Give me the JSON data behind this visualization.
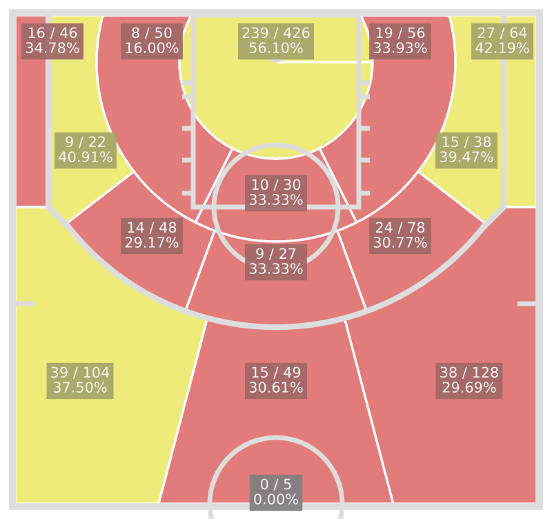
{
  "chart_data": {
    "type": "other",
    "categories": [
      null,
      null,
      null,
      null,
      null,
      null,
      null,
      null,
      null,
      null,
      null,
      null,
      null,
      null,
      null
    ],
    "values": [
      34.78,
      16.0,
      56.1,
      33.93,
      42.19,
      40.91,
      39.47,
      33.33,
      29.17,
      30.77,
      33.33,
      37.5,
      30.61,
      29.69,
      0.0
    ],
    "value_labels": [
      "16 / 46\n34.78%",
      "8 / 50\n16.00%",
      "239 / 426\n56.10%",
      "19 / 56\n33.93%",
      "27 / 64\n42.19%",
      "9 / 22\n40.91%",
      "15 / 38\n39.47%",
      "10 / 30\n33.33%",
      "14 / 48\n29.17%",
      "24 / 78\n30.77%",
      "9 / 27\n33.33%",
      "39 / 104\n37.50%",
      "15 / 49\n30.61%",
      "38 / 128\n29.69%",
      "0 / 5\n0.00%"
    ],
    "colors": [
      "#e27c7a",
      "#e27c7a",
      "#efeb7b",
      "#e27c7a",
      "#efeb7b",
      "#efeb7b",
      "#efeb7b",
      "#e27c7a",
      "#e27c7a",
      "#e27c7a",
      "#e27c7a",
      "#efeb7b",
      "#e27c7a",
      "#e27c7a",
      "#a8a8a8"
    ]
  }
}
